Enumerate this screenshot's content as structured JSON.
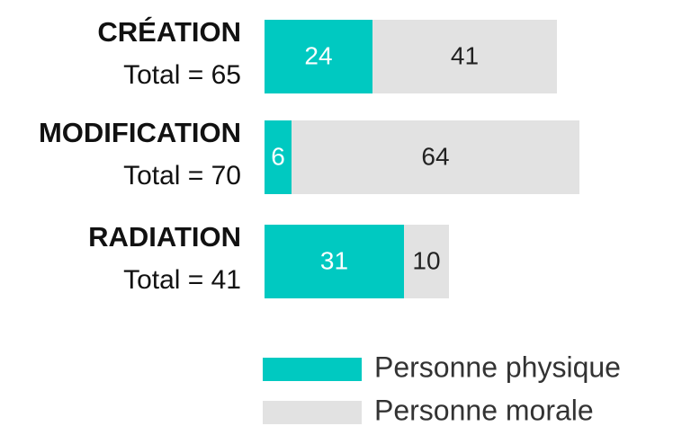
{
  "chart_data": {
    "type": "stacked-bar",
    "categories": [
      "CRÉATION",
      "MODIFICATION",
      "RADIATION"
    ],
    "category_subtitles": [
      "Total = 65",
      "Total = 70",
      "Total = 41"
    ],
    "series": [
      {
        "name": "Personne physique",
        "color": "#00c9c1",
        "label_color": "#ffffff",
        "values": [
          24,
          6,
          31
        ]
      },
      {
        "name": "Personne morale",
        "color": "#e2e2e2",
        "label_color": "#222222",
        "values": [
          41,
          64,
          10
        ]
      }
    ]
  }
}
